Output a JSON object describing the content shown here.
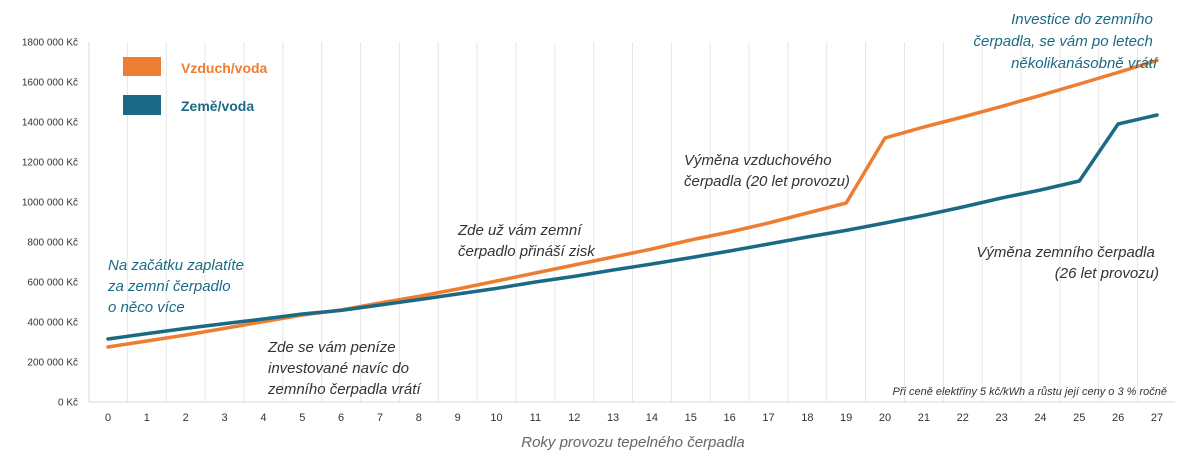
{
  "chart_data": {
    "type": "line",
    "x": [
      0,
      1,
      2,
      3,
      4,
      5,
      6,
      7,
      8,
      9,
      10,
      11,
      12,
      13,
      14,
      15,
      16,
      17,
      18,
      19,
      20,
      21,
      22,
      23,
      24,
      25,
      26,
      27
    ],
    "xlabel": "Roky provozu tepelného čerpadla",
    "ylabel": "",
    "ylim": [
      0,
      1800000
    ],
    "yticks": [
      0,
      200000,
      400000,
      600000,
      800000,
      1000000,
      1200000,
      1400000,
      1600000,
      1800000
    ],
    "ytick_labels": [
      "0 Kč",
      "200 000 Kč",
      "400 000 Kč",
      "600 000 Kč",
      "800 000 Kč",
      "1000 000 Kč",
      "1200 000 Kč",
      "1400 000 Kč",
      "1600 000 Kč",
      "1800 000 Kč"
    ],
    "grid": "vertical",
    "legend_position": "top-left",
    "series": [
      {
        "name": "Vzduch/voda",
        "color": "#ed7d31",
        "values": [
          275000,
          305000,
          335000,
          368000,
          402000,
          435000,
          460000,
          495000,
          528000,
          565000,
          605000,
          645000,
          685000,
          725000,
          765000,
          810000,
          850000,
          895000,
          945000,
          995000,
          1320000,
          1375000,
          1425000,
          1478000,
          1533000,
          1590000,
          1648000,
          1708000
        ]
      },
      {
        "name": "Země/voda",
        "color": "#1b6a85",
        "values": [
          315000,
          342000,
          368000,
          392000,
          415000,
          440000,
          458000,
          485000,
          512000,
          540000,
          568000,
          600000,
          628000,
          660000,
          690000,
          722000,
          755000,
          790000,
          825000,
          858000,
          895000,
          933000,
          975000,
          1020000,
          1060000,
          1105000,
          1390000,
          1435000
        ]
      }
    ],
    "annotations": {
      "start": [
        "Na začátku zaplatíte",
        "za zemní čerpadlo",
        "o něco více"
      ],
      "returns": [
        "Zde se vám peníze",
        "investované navíc do",
        "zemního čerpadla vrátí"
      ],
      "profit": [
        "Zde už vám zemní",
        "čerpadlo přináší zisk"
      ],
      "air_replacement": [
        "Výměna vzduchového",
        "čerpadla (20 let provozu)"
      ],
      "ground_replacement": [
        "Výměna zemního  čerpadla",
        "(26 let provozu)"
      ],
      "investment": [
        "Investice do zemního",
        "čerpadla, se vám po letech",
        "několikanásobně vrátí"
      ],
      "footnote": "Při ceně elektřiny 5 kč/kWh a růstu její ceny o 3 % ročně"
    }
  }
}
